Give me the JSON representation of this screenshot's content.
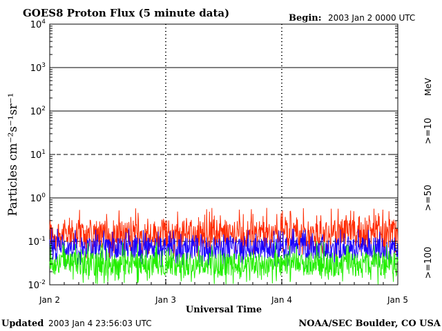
{
  "header": {
    "title": "GOES8 Proton Flux (5 minute data)",
    "begin_label": "Begin:",
    "begin_value": "2003 Jan 2 0000 UTC"
  },
  "footer": {
    "updated_label": "Updated",
    "updated_value": "2003 Jan  4 23:56:03 UTC",
    "source": "NOAA/SEC Boulder, CO USA"
  },
  "chart_data": {
    "type": "line",
    "title": "GOES8 Proton Flux (5 minute data)",
    "xlabel": "Universal Time",
    "ylabel": "Particles cm⁻²s⁻¹sr⁻¹",
    "yscale": "log",
    "ylim": [
      0.01,
      10000
    ],
    "xlim": [
      0,
      3
    ],
    "x_unit": "days since Jan 2 0000 UTC",
    "x_ticks": [
      {
        "x": 0,
        "label": "Jan 2"
      },
      {
        "x": 1,
        "label": "Jan 3"
      },
      {
        "x": 2,
        "label": "Jan 4"
      },
      {
        "x": 3,
        "label": "Jan 5"
      }
    ],
    "y_ticks": [
      {
        "exp": -2,
        "base": "10",
        "sup": "-2"
      },
      {
        "exp": -1,
        "base": "10",
        "sup": "-1"
      },
      {
        "exp": 0,
        "base": "10",
        "sup": "0"
      },
      {
        "exp": 1,
        "base": "10",
        "sup": "1"
      },
      {
        "exp": 2,
        "base": "10",
        "sup": "2"
      },
      {
        "exp": 3,
        "base": "10",
        "sup": "3"
      },
      {
        "exp": 4,
        "base": "10",
        "sup": "4"
      }
    ],
    "threshold_lines": [
      {
        "exp": 1,
        "style": "dashed"
      },
      {
        "exp": -1,
        "style": "dashed"
      }
    ],
    "energy_unit": "MeV",
    "series": [
      {
        "name": ">=10",
        "color": "#ff2a00",
        "typical": 0.15,
        "min": 0.04,
        "max": 0.6
      },
      {
        "name": ">=50",
        "color": "#1a00ff",
        "typical": 0.07,
        "min": 0.025,
        "max": 0.2
      },
      {
        "name": ">=100",
        "color": "#22ee00",
        "typical": 0.03,
        "min": 0.01,
        "max": 0.1
      }
    ]
  }
}
